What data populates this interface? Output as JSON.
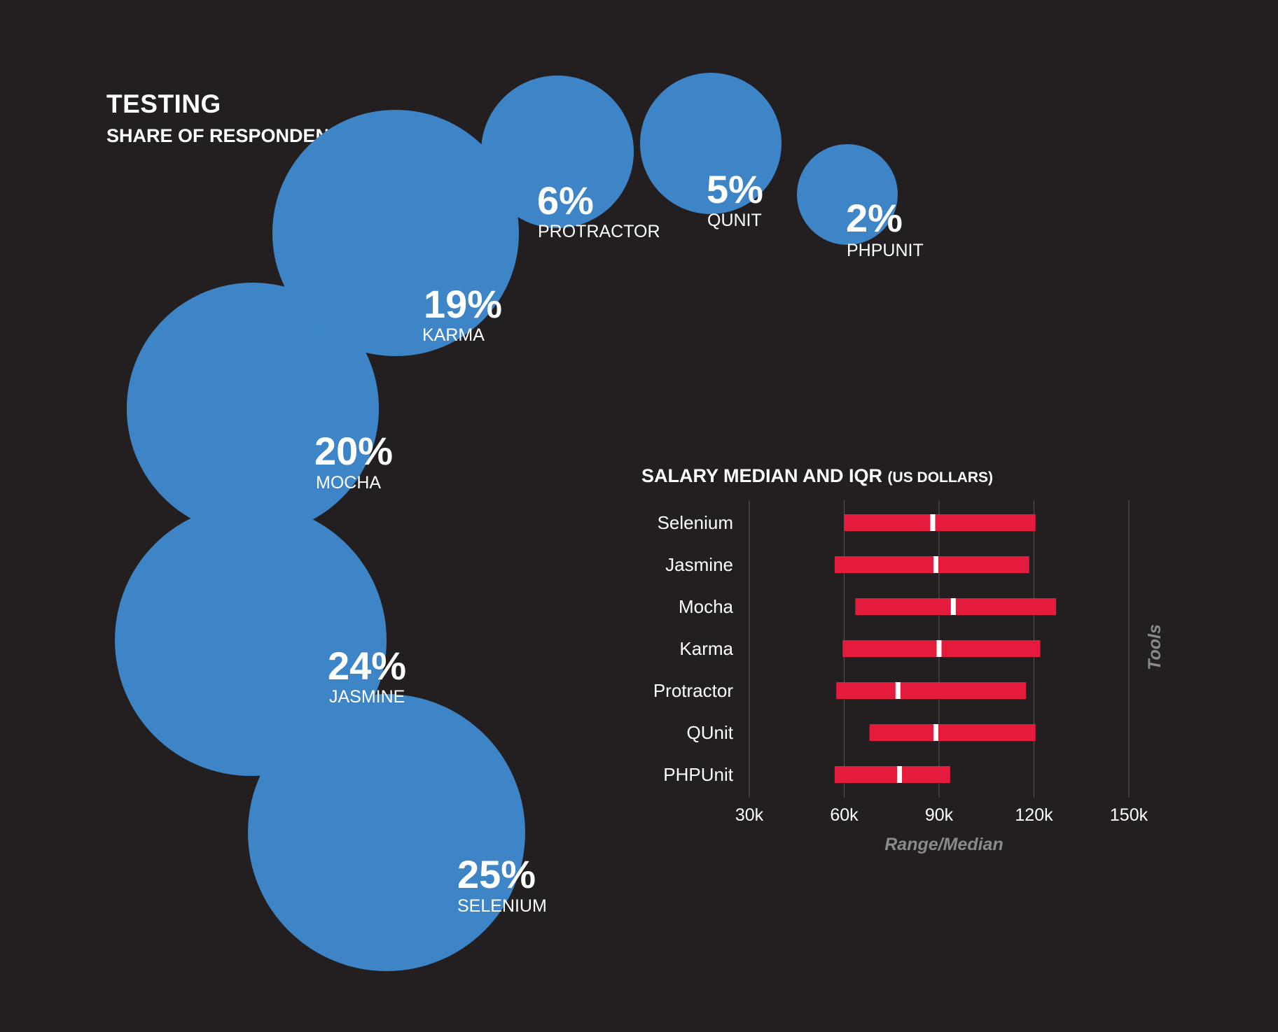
{
  "title": "TESTING",
  "subtitle": "SHARE OF RESPONDENTS",
  "colors": {
    "background": "#231f20",
    "bubble": "#3d85c6",
    "bar": "#e41b3c",
    "median": "#ffffff",
    "gridline": "#555555",
    "axis_title": "#8a8a8a"
  },
  "chart_data": [
    {
      "type": "bubble",
      "title": "SHARE OF RESPONDENTS",
      "items": [
        {
          "name": "SELENIUM",
          "value": 25,
          "label": "25%"
        },
        {
          "name": "JASMINE",
          "value": 24,
          "label": "24%"
        },
        {
          "name": "MOCHA",
          "value": 20,
          "label": "20%"
        },
        {
          "name": "KARMA",
          "value": 19,
          "label": "19%"
        },
        {
          "name": "PROTRACTOR",
          "value": 6,
          "label": "6%"
        },
        {
          "name": "QUNIT",
          "value": 5,
          "label": "5%"
        },
        {
          "name": "PHPUNIT",
          "value": 2,
          "label": "2%"
        }
      ]
    },
    {
      "type": "bar",
      "orientation": "horizontal-range",
      "title": "SALARY MEDIAN AND IQR",
      "title_unit": "(US DOLLARS)",
      "xlabel": "Range/Median",
      "ylabel": "Tools",
      "xlim": [
        30000,
        150000
      ],
      "xticks": [
        30000,
        60000,
        90000,
        120000,
        150000
      ],
      "xtick_labels": [
        "30k",
        "60k",
        "90k",
        "120k",
        "150k"
      ],
      "grid": true,
      "categories": [
        "Selenium",
        "Jasmine",
        "Mocha",
        "Karma",
        "Protractor",
        "QUnit",
        "PHPUnit"
      ],
      "low": [
        60000,
        57000,
        63500,
        59500,
        57500,
        68000,
        57000
      ],
      "high": [
        120500,
        118500,
        127000,
        122000,
        117500,
        120500,
        93500
      ],
      "median": [
        88000,
        89000,
        94500,
        90000,
        77000,
        89000,
        77500
      ]
    }
  ]
}
